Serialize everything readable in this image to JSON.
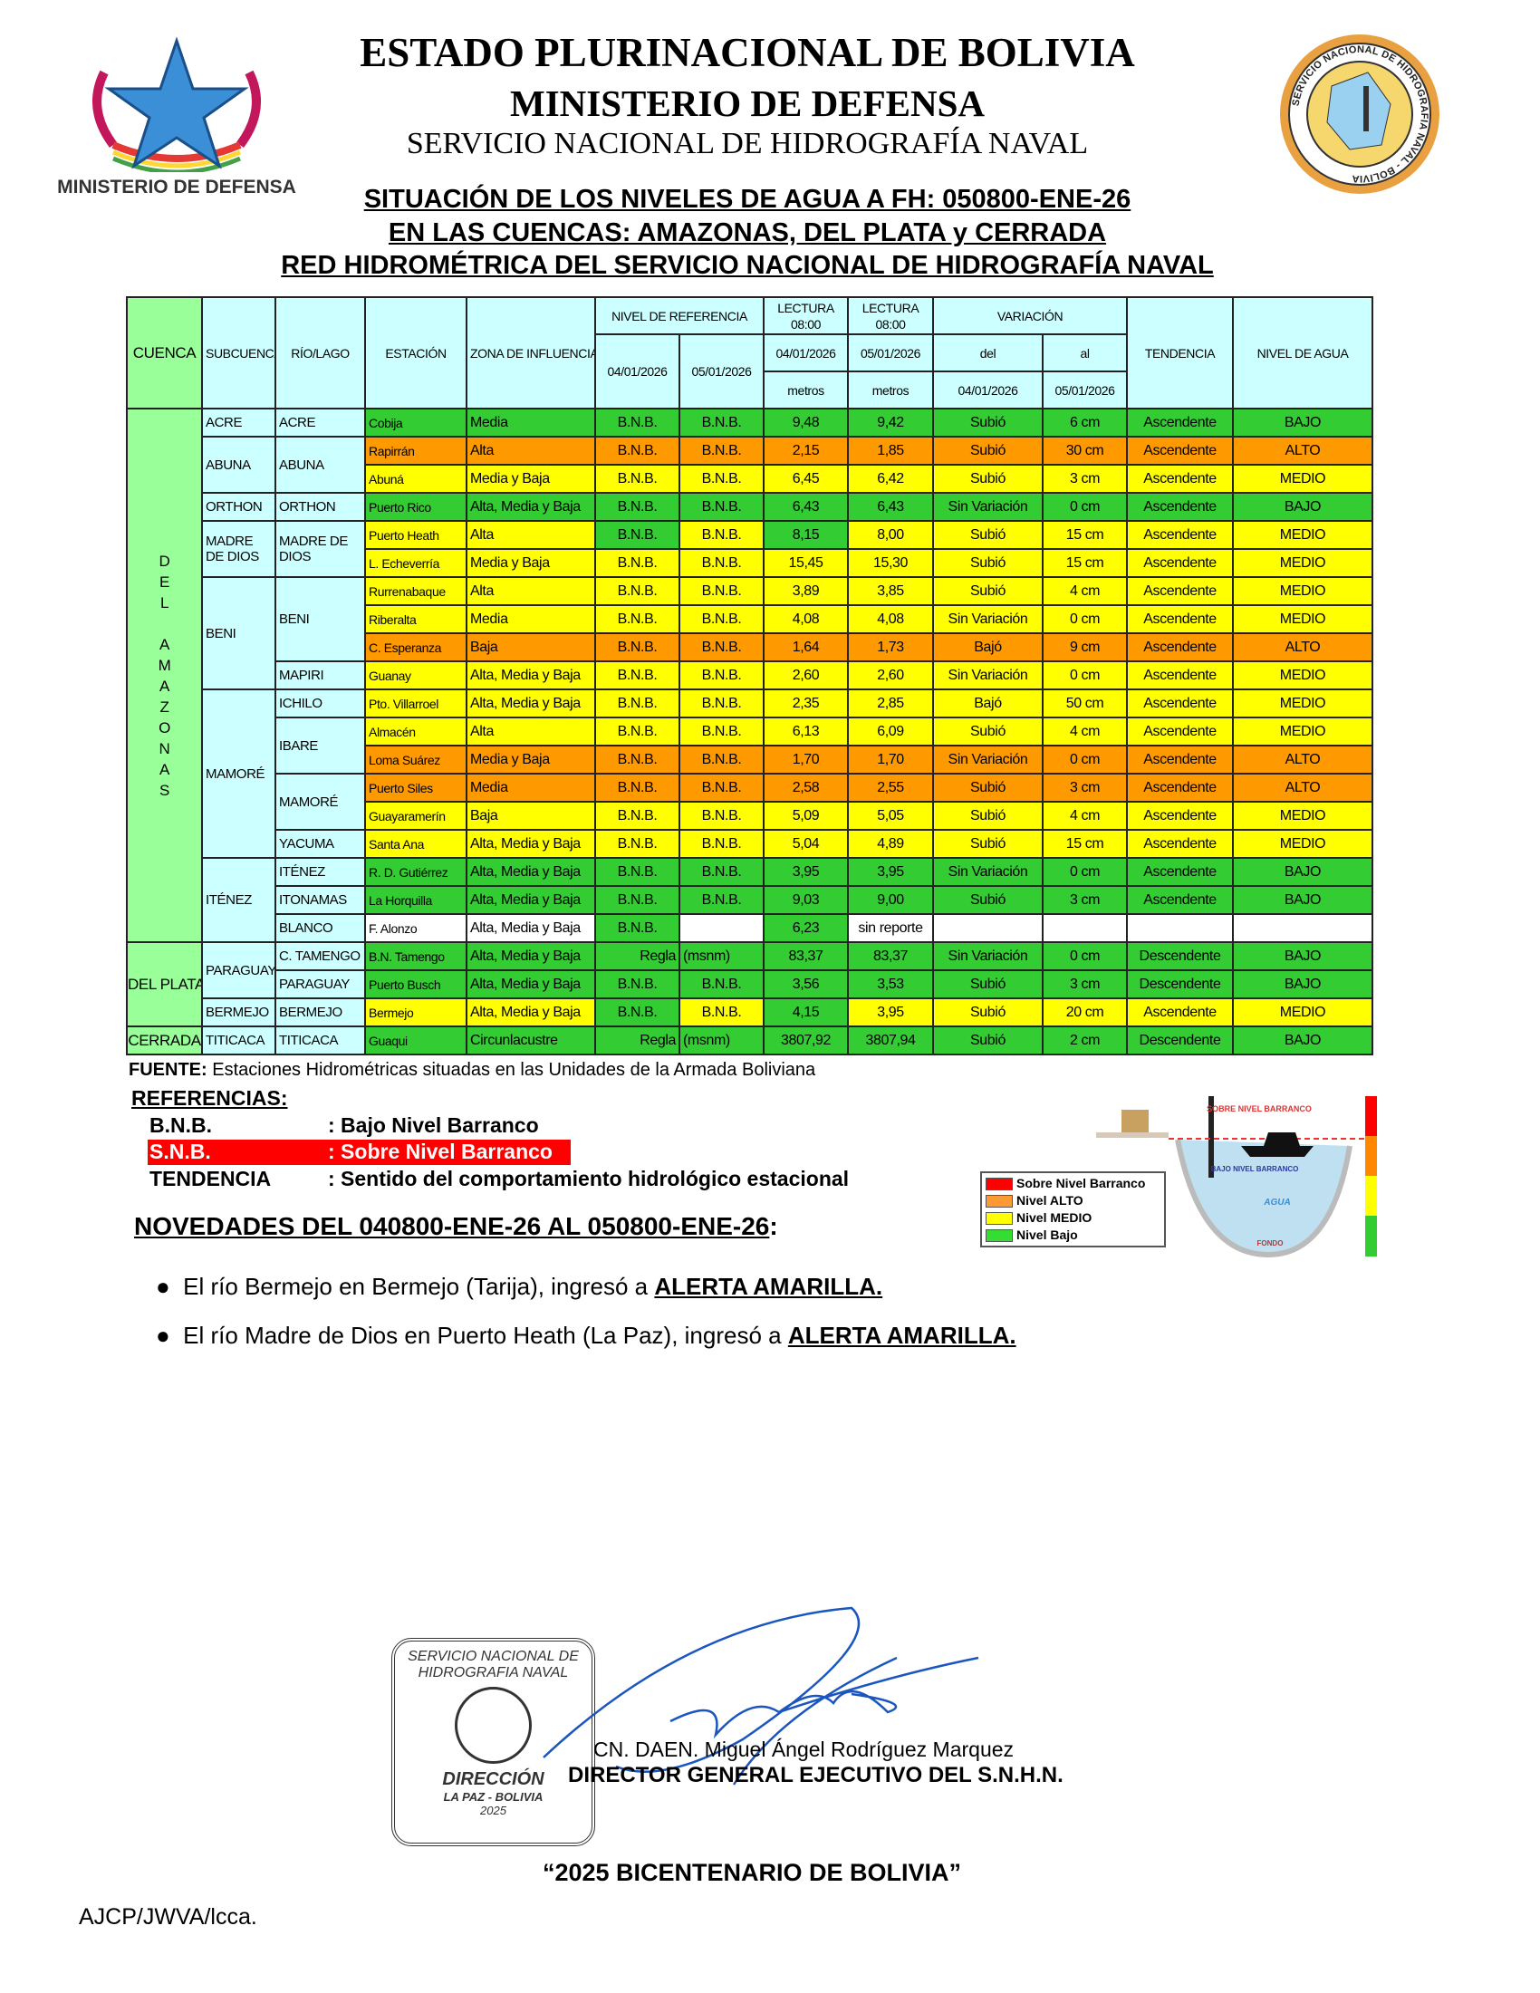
{
  "header": {
    "line1": "ESTADO PLURINACIONAL DE BOLIVIA",
    "line2": "MINISTERIO DE DEFENSA",
    "line3": "SERVICIO NACIONAL DE HIDROGRAFÍA NAVAL",
    "left_logo_text": "MINISTERIO DE DEFENSA",
    "right_seal_text": "SERVICIO NACIONAL DE HIDROGRAFIA NAVAL - BOLIVIA"
  },
  "titles": [
    "SITUACIÓN DE LOS NIVELES DE AGUA A FH: 050800-ENE-26",
    "EN LAS CUENCAS: AMAZONAS, DEL PLATA y CERRADA",
    "RED HIDROMÉTRICA DEL SERVICIO NACIONAL DE HIDROGRAFÍA NAVAL"
  ],
  "colors": {
    "green": "#33cc33",
    "yellow": "#ffff00",
    "orange": "#ff9900",
    "white": "#ffffff",
    "header": "#ccffff",
    "cuenca": "#99ff99",
    "red": "#ff0000"
  },
  "table_header": {
    "cuenca": "CUENCA",
    "subcuenca": "SUBCUENCA",
    "rio": "RÍO/LAGO",
    "estacion": "ESTACIÓN",
    "zona": "ZONA DE INFLUENCIA",
    "nivel_ref": "NIVEL DE REFERENCIA",
    "ref_d1": "04/01/2026",
    "ref_d2": "05/01/2026",
    "lectura1": "LECTURA 08:00",
    "lectura2": "LECTURA 08:00",
    "lec_d1": "04/01/2026",
    "lec_d2": "05/01/2026",
    "metros1": "metros",
    "metros2": "metros",
    "variacion": "VARIACIÓN",
    "del": "del",
    "al": "al",
    "var_d1": "04/01/2026",
    "var_d2": "05/01/2026",
    "tendencia": "TENDENCIA",
    "nivel": "NIVEL DE AGUA"
  },
  "cuencas": [
    {
      "name": "DEL AMAZONAS",
      "vertical": [
        "D",
        "E",
        "L",
        "",
        "A",
        "M",
        "A",
        "Z",
        "O",
        "N",
        "A",
        "S"
      ],
      "subcuencas": [
        {
          "name": "ACRE",
          "rios": [
            {
              "name": "ACRE",
              "stations": [
                {
                  "color": "green",
                  "cells": [
                    "Cobija",
                    "Media",
                    "B.N.B.",
                    "B.N.B.",
                    "9,48",
                    "9,42",
                    "Subió",
                    "6 cm",
                    "Ascendente",
                    "BAJO"
                  ]
                }
              ]
            }
          ]
        },
        {
          "name": "ABUNA",
          "rios": [
            {
              "name": "ABUNA",
              "stations": [
                {
                  "color": "orange",
                  "cells": [
                    "Rapirrán",
                    "Alta",
                    "B.N.B.",
                    "B.N.B.",
                    "2,15",
                    "1,85",
                    "Subió",
                    "30 cm",
                    "Ascendente",
                    "ALTO"
                  ]
                },
                {
                  "color": "yellow",
                  "cells": [
                    "Abuná",
                    "Media y Baja",
                    "B.N.B.",
                    "B.N.B.",
                    "6,45",
                    "6,42",
                    "Subió",
                    "3 cm",
                    "Ascendente",
                    "MEDIO"
                  ]
                }
              ]
            }
          ]
        },
        {
          "name": "ORTHON",
          "rios": [
            {
              "name": "ORTHON",
              "stations": [
                {
                  "color": "green",
                  "cells": [
                    "Puerto Rico",
                    "Alta, Media y Baja",
                    "B.N.B.",
                    "B.N.B.",
                    "6,43",
                    "6,43",
                    "Sin Variación",
                    "0 cm",
                    "Ascendente",
                    "BAJO"
                  ]
                }
              ]
            }
          ]
        },
        {
          "name": "MADRE DE DIOS",
          "rios": [
            {
              "name": "MADRE DE DIOS",
              "stations": [
                {
                  "color": "yellow",
                  "cell_colors": {
                    "2": "green",
                    "4": "green"
                  },
                  "cells": [
                    "Puerto Heath",
                    "Alta",
                    "B.N.B.",
                    "B.N.B.",
                    "8,15",
                    "8,00",
                    "Subió",
                    "15 cm",
                    "Ascendente",
                    "MEDIO"
                  ]
                },
                {
                  "color": "yellow",
                  "cells": [
                    "L. Echeverría",
                    "Media y Baja",
                    "B.N.B.",
                    "B.N.B.",
                    "15,45",
                    "15,30",
                    "Subió",
                    "15 cm",
                    "Ascendente",
                    "MEDIO"
                  ]
                }
              ]
            }
          ]
        },
        {
          "name": "BENI",
          "rios": [
            {
              "name": "BENI",
              "stations": [
                {
                  "color": "yellow",
                  "cells": [
                    "Rurrenabaque",
                    "Alta",
                    "B.N.B.",
                    "B.N.B.",
                    "3,89",
                    "3,85",
                    "Subió",
                    "4 cm",
                    "Ascendente",
                    "MEDIO"
                  ]
                },
                {
                  "color": "yellow",
                  "cells": [
                    "Riberalta",
                    "Media",
                    "B.N.B.",
                    "B.N.B.",
                    "4,08",
                    "4,08",
                    "Sin Variación",
                    "0 cm",
                    "Ascendente",
                    "MEDIO"
                  ]
                },
                {
                  "color": "orange",
                  "cells": [
                    "C. Esperanza",
                    "Baja",
                    "B.N.B.",
                    "B.N.B.",
                    "1,64",
                    "1,73",
                    "Bajó",
                    "9 cm",
                    "Ascendente",
                    "ALTO"
                  ]
                }
              ]
            },
            {
              "name": "MAPIRI",
              "stations": [
                {
                  "color": "yellow",
                  "cells": [
                    "Guanay",
                    "Alta, Media y Baja",
                    "B.N.B.",
                    "B.N.B.",
                    "2,60",
                    "2,60",
                    "Sin Variación",
                    "0 cm",
                    "Ascendente",
                    "MEDIO"
                  ]
                }
              ]
            }
          ]
        },
        {
          "name": "MAMORÉ",
          "rios": [
            {
              "name": "ICHILO",
              "stations": [
                {
                  "color": "yellow",
                  "cells": [
                    "Pto. Villarroel",
                    "Alta, Media y Baja",
                    "B.N.B.",
                    "B.N.B.",
                    "2,35",
                    "2,85",
                    "Bajó",
                    "50 cm",
                    "Ascendente",
                    "MEDIO"
                  ]
                }
              ]
            },
            {
              "name": "IBARE",
              "stations": [
                {
                  "color": "yellow",
                  "cells": [
                    "Almacén",
                    "Alta",
                    "B.N.B.",
                    "B.N.B.",
                    "6,13",
                    "6,09",
                    "Subió",
                    "4 cm",
                    "Ascendente",
                    "MEDIO"
                  ]
                },
                {
                  "color": "orange",
                  "cells": [
                    "Loma Suárez",
                    "Media y Baja",
                    "B.N.B.",
                    "B.N.B.",
                    "1,70",
                    "1,70",
                    "Sin Variación",
                    "0 cm",
                    "Ascendente",
                    "ALTO"
                  ]
                }
              ]
            },
            {
              "name": "MAMORÉ",
              "stations": [
                {
                  "color": "orange",
                  "cells": [
                    "Puerto Siles",
                    "Media",
                    "B.N.B.",
                    "B.N.B.",
                    "2,58",
                    "2,55",
                    "Subió",
                    "3 cm",
                    "Ascendente",
                    "ALTO"
                  ]
                },
                {
                  "color": "yellow",
                  "cells": [
                    "Guayaramerín",
                    "Baja",
                    "B.N.B.",
                    "B.N.B.",
                    "5,09",
                    "5,05",
                    "Subió",
                    "4 cm",
                    "Ascendente",
                    "MEDIO"
                  ]
                }
              ]
            },
            {
              "name": "YACUMA",
              "stations": [
                {
                  "color": "yellow",
                  "cells": [
                    "Santa Ana",
                    "Alta, Media y Baja",
                    "B.N.B.",
                    "B.N.B.",
                    "5,04",
                    "4,89",
                    "Subió",
                    "15 cm",
                    "Ascendente",
                    "MEDIO"
                  ]
                }
              ]
            }
          ]
        },
        {
          "name": "ITÉNEZ",
          "rios": [
            {
              "name": "ITÉNEZ",
              "stations": [
                {
                  "color": "green",
                  "cells": [
                    "R. D. Gutiérrez",
                    "Alta, Media y Baja",
                    "B.N.B.",
                    "B.N.B.",
                    "3,95",
                    "3,95",
                    "Sin Variación",
                    "0 cm",
                    "Ascendente",
                    "BAJO"
                  ]
                }
              ]
            },
            {
              "name": "ITONAMAS",
              "stations": [
                {
                  "color": "green",
                  "cells": [
                    "La Horquilla",
                    "Alta, Media y Baja",
                    "B.N.B.",
                    "B.N.B.",
                    "9,03",
                    "9,00",
                    "Subió",
                    "3 cm",
                    "Ascendente",
                    "BAJO"
                  ]
                }
              ]
            },
            {
              "name": "BLANCO",
              "stations": [
                {
                  "color": "white",
                  "cell_colors": {
                    "2": "green",
                    "4": "green"
                  },
                  "cells": [
                    "F. Alonzo",
                    "Alta, Media y Baja",
                    "B.N.B.",
                    "",
                    "6,23",
                    "sin reporte",
                    "",
                    "",
                    "",
                    ""
                  ]
                }
              ]
            }
          ]
        }
      ]
    },
    {
      "name": "DEL PLATA",
      "subcuencas": [
        {
          "name": "PARAGUAY",
          "rios": [
            {
              "name": "C. TAMENGO",
              "stations": [
                {
                  "color": "green",
                  "cells": [
                    "B.N. Tamengo",
                    "Alta, Media y Baja",
                    "Regla",
                    "(msnm)",
                    "83,37",
                    "83,37",
                    "Sin Variación",
                    "0 cm",
                    "Descendente",
                    "BAJO"
                  ]
                }
              ]
            },
            {
              "name": "PARAGUAY",
              "stations": [
                {
                  "color": "green",
                  "cells": [
                    "Puerto Busch",
                    "Alta, Media y Baja",
                    "B.N.B.",
                    "B.N.B.",
                    "3,56",
                    "3,53",
                    "Subió",
                    "3 cm",
                    "Descendente",
                    "BAJO"
                  ]
                }
              ]
            }
          ]
        },
        {
          "name": "BERMEJO",
          "rios": [
            {
              "name": "BERMEJO",
              "stations": [
                {
                  "color": "yellow",
                  "cell_colors": {
                    "2": "green",
                    "4": "green"
                  },
                  "cells": [
                    "Bermejo",
                    "Alta, Media y Baja",
                    "B.N.B.",
                    "B.N.B.",
                    "4,15",
                    "3,95",
                    "Subió",
                    "20 cm",
                    "Ascendente",
                    "MEDIO"
                  ]
                }
              ]
            }
          ]
        }
      ]
    },
    {
      "name": "CERRADA",
      "subcuencas": [
        {
          "name": "TITICACA",
          "rios": [
            {
              "name": "TITICACA",
              "stations": [
                {
                  "color": "green",
                  "cells": [
                    "Guaqui",
                    "Circunlacustre",
                    "Regla",
                    "(msnm)",
                    "3807,92",
                    "3807,94",
                    "Subió",
                    "2 cm",
                    "Descendente",
                    "BAJO"
                  ]
                }
              ]
            }
          ]
        }
      ]
    }
  ],
  "fuente": {
    "label": "FUENTE:",
    "text": " Estaciones Hidrométricas situadas en las Unidades de la Armada Boliviana"
  },
  "referencias": {
    "title": "REFERENCIAS:",
    "items": [
      {
        "key": "B.N.B.",
        "value": ": Bajo Nivel Barranco"
      },
      {
        "key": "S.N.B.",
        "value": ": Sobre Nivel Barranco"
      },
      {
        "key": "TENDENCIA",
        "value": ": Sentido del comportamiento hidrológico estacional"
      }
    ]
  },
  "diagram": {
    "sobre": "SOBRE NIVEL BARRANCO",
    "bajo": "BAJO NIVEL BARRANCO",
    "agua": "AGUA",
    "fondo": "FONDO",
    "legend": [
      {
        "label": "Sobre Nivel Barranco",
        "color": "#ff0000"
      },
      {
        "label": "Nivel ALTO",
        "color": "#ff9933"
      },
      {
        "label": "Nivel MEDIO",
        "color": "#ffff00"
      },
      {
        "label": "Nivel Bajo",
        "color": "#33dd33"
      }
    ]
  },
  "novedades": {
    "title": "NOVEDADES DEL 040800-ENE-26  AL 050800-ENE-26",
    "items": [
      {
        "text": "El río Bermejo en Bermejo (Tarija), ingresó a ",
        "alert": "ALERTA AMARILLA."
      },
      {
        "text": "El río Madre de Dios en Puerto Heath (La Paz), ingresó a ",
        "alert": "ALERTA AMARILLA."
      }
    ]
  },
  "stamp": {
    "top": "SERVICIO NACIONAL DE HIDROGRAFIA NAVAL",
    "dir": "DIRECCIÓN",
    "place": "LA PAZ - BOLIVIA",
    "year": "2025"
  },
  "signer": {
    "name": "CN. DAEN. Miguel Ángel Rodríguez Marquez",
    "title": "DIRECTOR GENERAL EJECUTIVO DEL S.N.H.N."
  },
  "footer": {
    "motto": "“2025 BICENTENARIO DE BOLIVIA”",
    "initials": "AJCP/JWVA/lcca."
  }
}
